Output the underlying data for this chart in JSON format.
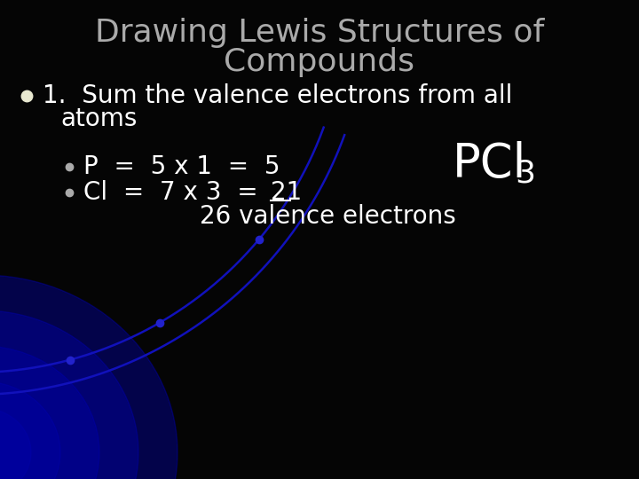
{
  "background_color": "#050505",
  "title_line1": "Drawing Lewis Structures of",
  "title_line2": "Compounds",
  "title_color": "#aaaaaa",
  "title_fontsize": 26,
  "bullet_color": "#ffffff",
  "bullet1_dot_color": "#e8e8d0",
  "bullet1_text_line1": "1.  Sum the valence electrons from all",
  "bullet1_text_line2": "atoms",
  "bullet1_fontsize": 20,
  "sub_bullet_dot_color": "#aaaaaa",
  "sub_bullet_fontsize": 20,
  "sub_bullet1_main": "P  =  5 x 1  =  5",
  "sub_bullet2_main": "Cl  =  7 x 3  =  ",
  "sub_bullet2_underlined": "21",
  "sub_bullet3": "26 valence electrons",
  "pcl3_text": "PCl",
  "pcl3_sub": "3",
  "pcl3_fontsize": 38,
  "pcl3_sub_fontsize": 26,
  "text_color": "#ffffff",
  "arc_color": "#1111bb",
  "arc_dot_color": "#2222cc",
  "glow_color": "#0000cc"
}
